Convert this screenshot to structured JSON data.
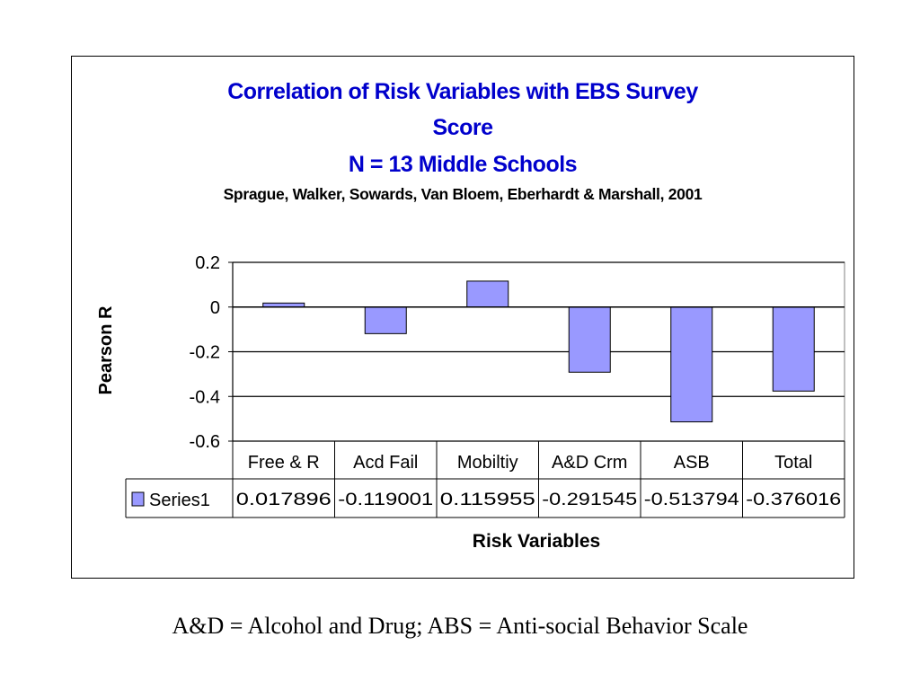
{
  "chart_data": {
    "type": "bar",
    "title_lines": [
      "Correlation of Risk Variables with EBS Survey",
      "Score",
      "N = 13 Middle Schools"
    ],
    "subtitle": "Sprague, Walker, Sowards, Van Bloem, Eberhardt & Marshall, 2001",
    "xlabel": "Risk Variables",
    "ylabel": "Pearson R",
    "categories": [
      "Free & R",
      "Acd Fail",
      "Mobiltiy",
      "A&D Crm",
      "ASB",
      "Total"
    ],
    "series": [
      {
        "name": "Series1",
        "values": [
          0.017896,
          -0.119001,
          0.115955,
          -0.291545,
          -0.513794,
          -0.376016
        ],
        "labels": [
          "0.017896",
          "-0.119001",
          "0.115955",
          "-0.291545",
          "-0.513794",
          "-0.376016"
        ]
      }
    ],
    "ylim": [
      -0.6,
      0.2
    ],
    "yticks": [
      0.2,
      0,
      -0.2,
      -0.4,
      -0.6
    ],
    "ytick_labels": [
      "0.2",
      "0",
      "-0.2",
      "-0.4",
      "-0.6"
    ],
    "grid": true,
    "legend": "data-table",
    "colors": {
      "bar_fill": "#9999ff",
      "title": "#0000cc"
    }
  },
  "footnote": "A&D = Alcohol and Drug; ABS = Anti-social Behavior Scale"
}
